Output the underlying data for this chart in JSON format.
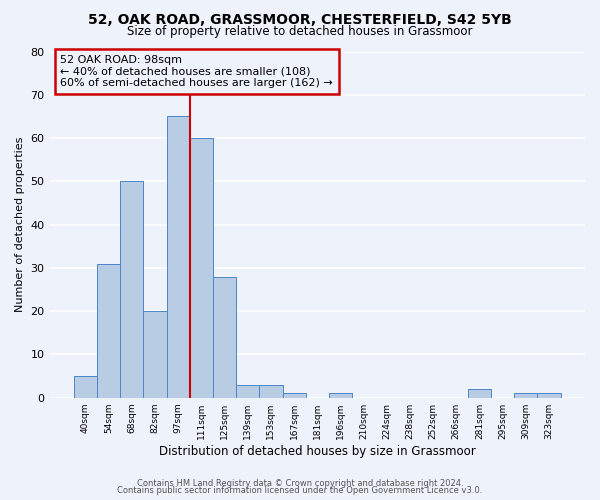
{
  "title": "52, OAK ROAD, GRASSMOOR, CHESTERFIELD, S42 5YB",
  "subtitle": "Size of property relative to detached houses in Grassmoor",
  "xlabel": "Distribution of detached houses by size in Grassmoor",
  "ylabel": "Number of detached properties",
  "bar_labels": [
    "40sqm",
    "54sqm",
    "68sqm",
    "82sqm",
    "97sqm",
    "111sqm",
    "125sqm",
    "139sqm",
    "153sqm",
    "167sqm",
    "181sqm",
    "196sqm",
    "210sqm",
    "224sqm",
    "238sqm",
    "252sqm",
    "266sqm",
    "281sqm",
    "295sqm",
    "309sqm",
    "323sqm"
  ],
  "bar_values": [
    5,
    31,
    50,
    20,
    65,
    60,
    28,
    3,
    3,
    1,
    0,
    1,
    0,
    0,
    0,
    0,
    0,
    2,
    0,
    1,
    1
  ],
  "bar_color": "#b8cce4",
  "bar_edge_color": "#4a86c8",
  "bg_color": "#eef2fb",
  "grid_color": "#ffffff",
  "annotation_line1": "52 OAK ROAD: 98sqm",
  "annotation_line2": "← 40% of detached houses are smaller (108)",
  "annotation_line3": "60% of semi-detached houses are larger (162) →",
  "annotation_box_edge_color": "#cc0000",
  "vline_color": "#cc0000",
  "vline_x": 4.5,
  "ylim": [
    0,
    80
  ],
  "yticks": [
    0,
    10,
    20,
    30,
    40,
    50,
    60,
    70,
    80
  ],
  "footer_line1": "Contains HM Land Registry data © Crown copyright and database right 2024.",
  "footer_line2": "Contains public sector information licensed under the Open Government Licence v3.0."
}
